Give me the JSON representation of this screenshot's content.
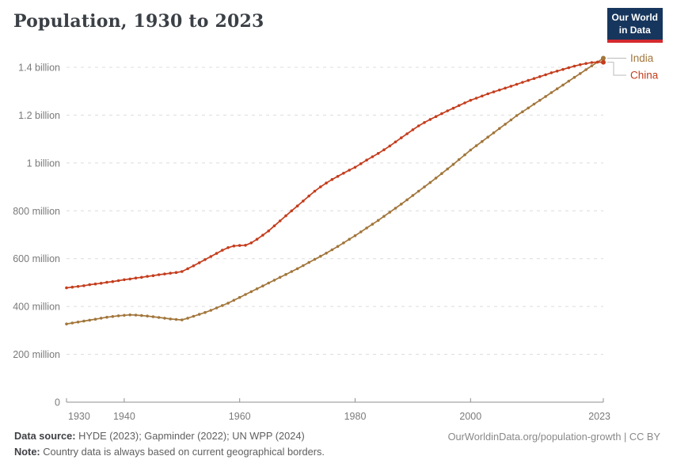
{
  "header": {
    "title": "Population, 1930 to 2023",
    "logo_line1": "Our World",
    "logo_line2": "in Data"
  },
  "footer": {
    "source_label": "Data source:",
    "source_text": "HYDE (2023); Gapminder (2022); UN WPP (2024)",
    "note_label": "Note:",
    "note_text": "Country data is always based on current geographical borders.",
    "credit": "OurWorldinData.org/population-growth | CC BY"
  },
  "colors": {
    "india": "#a2763b",
    "china": "#c43d1d",
    "grid": "#dcdcdc",
    "axis": "#8f8f8f",
    "tick_text": "#7a7a7a",
    "connector": "#bbbbbb",
    "logo_bg": "#17365d",
    "logo_red": "#d4292f"
  },
  "chart_data": {
    "type": "line",
    "title": "Population, 1930 to 2023",
    "xlabel": "",
    "ylabel": "Population",
    "units": "millions",
    "x_range": [
      1930,
      2023
    ],
    "ylim": [
      0,
      1400
    ],
    "grid": "dashed horizontal gridlines",
    "legend_position": "right of line ends",
    "yticks": [
      {
        "value": 0,
        "label": "0"
      },
      {
        "value": 200,
        "label": "200 million"
      },
      {
        "value": 400,
        "label": "400 million"
      },
      {
        "value": 600,
        "label": "600 million"
      },
      {
        "value": 800,
        "label": "800 million"
      },
      {
        "value": 1000,
        "label": "1 billion"
      },
      {
        "value": 1200,
        "label": "1.2 billion"
      },
      {
        "value": 1400,
        "label": "1.4 billion"
      }
    ],
    "xticks": [
      {
        "value": 1930,
        "label": "1930"
      },
      {
        "value": 1940,
        "label": "1940"
      },
      {
        "value": 1960,
        "label": "1960"
      },
      {
        "value": 1980,
        "label": "1980"
      },
      {
        "value": 2000,
        "label": "2000"
      },
      {
        "value": 2023,
        "label": "2023"
      }
    ],
    "years": [
      1930,
      1931,
      1932,
      1933,
      1934,
      1935,
      1936,
      1937,
      1938,
      1939,
      1940,
      1941,
      1942,
      1943,
      1944,
      1945,
      1946,
      1947,
      1948,
      1949,
      1950,
      1951,
      1952,
      1953,
      1954,
      1955,
      1956,
      1957,
      1958,
      1959,
      1960,
      1961,
      1962,
      1963,
      1964,
      1965,
      1966,
      1967,
      1968,
      1969,
      1970,
      1971,
      1972,
      1973,
      1974,
      1975,
      1976,
      1977,
      1978,
      1979,
      1980,
      1981,
      1982,
      1983,
      1984,
      1985,
      1986,
      1987,
      1988,
      1989,
      1990,
      1991,
      1992,
      1993,
      1994,
      1995,
      1996,
      1997,
      1998,
      1999,
      2000,
      2001,
      2002,
      2003,
      2004,
      2005,
      2006,
      2007,
      2008,
      2009,
      2010,
      2011,
      2012,
      2013,
      2014,
      2015,
      2016,
      2017,
      2018,
      2019,
      2020,
      2021,
      2022,
      2023
    ],
    "series": [
      {
        "name": "India",
        "color": "#a2763b",
        "values": [
          327,
          331,
          335,
          339,
          343,
          347,
          351,
          355,
          358,
          361,
          363,
          365,
          364,
          362,
          360,
          357,
          354,
          351,
          348,
          346,
          344,
          351,
          359,
          367,
          375,
          384,
          394,
          404,
          414,
          426,
          438,
          450,
          462,
          474,
          486,
          498,
          510,
          522,
          534,
          546,
          558,
          571,
          584,
          597,
          610,
          623,
          637,
          651,
          666,
          681,
          696,
          712,
          728,
          744,
          760,
          777,
          794,
          811,
          828,
          846,
          864,
          882,
          900,
          918,
          937,
          956,
          975,
          994,
          1014,
          1034,
          1054,
          1072,
          1090,
          1108,
          1126,
          1144,
          1162,
          1180,
          1198,
          1214,
          1230,
          1246,
          1262,
          1278,
          1294,
          1310,
          1326,
          1342,
          1358,
          1374,
          1390,
          1406,
          1422,
          1438
        ]
      },
      {
        "name": "China",
        "color": "#c43d1d",
        "values": [
          478,
          481,
          484,
          487,
          491,
          494,
          497,
          501,
          504,
          508,
          512,
          515,
          519,
          522,
          526,
          529,
          533,
          536,
          539,
          542,
          546,
          558,
          570,
          583,
          596,
          609,
          622,
          635,
          646,
          653,
          655,
          656,
          666,
          681,
          698,
          716,
          737,
          758,
          779,
          800,
          820,
          841,
          862,
          882,
          900,
          916,
          931,
          944,
          957,
          970,
          982,
          997,
          1012,
          1026,
          1040,
          1055,
          1071,
          1088,
          1105,
          1122,
          1139,
          1155,
          1169,
          1182,
          1194,
          1206,
          1218,
          1229,
          1240,
          1251,
          1262,
          1271,
          1280,
          1289,
          1297,
          1305,
          1313,
          1321,
          1329,
          1337,
          1345,
          1353,
          1361,
          1369,
          1377,
          1384,
          1391,
          1398,
          1405,
          1411,
          1416,
          1420,
          1422,
          1421
        ]
      }
    ]
  }
}
